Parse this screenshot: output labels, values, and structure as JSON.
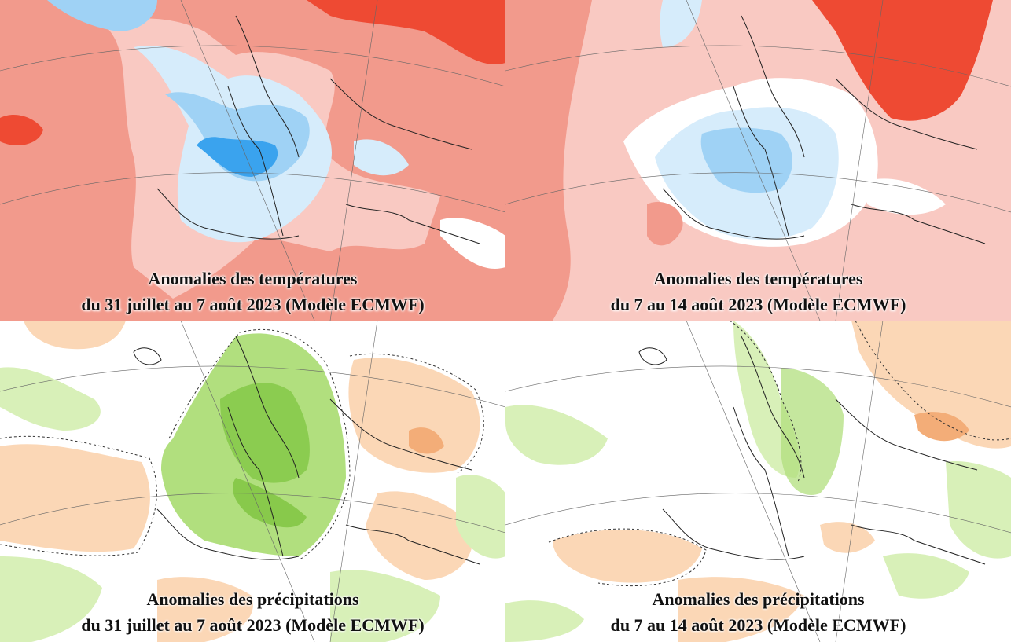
{
  "panels": [
    {
      "id": "temp-week1",
      "line1": "Anomalies des températures",
      "line2": "du 31 juillet au 7 août 2023 (Modèle ECMWF)",
      "variable": "temperature"
    },
    {
      "id": "temp-week2",
      "line1": "Anomalies des températures",
      "line2": "du 7 au 14 août 2023 (Modèle ECMWF)",
      "variable": "temperature"
    },
    {
      "id": "precip-week1",
      "line1": "Anomalies des précipitations",
      "line2": "du 31 juillet au 7 août 2023 (Modèle ECMWF)",
      "variable": "precipitation"
    },
    {
      "id": "precip-week2",
      "line1": "Anomalies des précipitations",
      "line2": "du 7 au 14 août 2023 (Modèle ECMWF)",
      "variable": "precipitation"
    }
  ],
  "colors": {
    "warm_light": "#f9c9c2",
    "warm_mid": "#f29a8c",
    "warm_strong": "#ee4a33",
    "cool_light": "#d6ecfb",
    "cool_mid": "#9fd2f5",
    "cool_strong": "#3aa3ee",
    "wet_light": "#d8f0b8",
    "wet_mid": "#b1df7e",
    "wet_strong": "#6cbb2a",
    "dry_light": "#fbd7b6",
    "dry_mid": "#f3ad78",
    "neutral": "#ffffff",
    "coast": "#222222"
  }
}
